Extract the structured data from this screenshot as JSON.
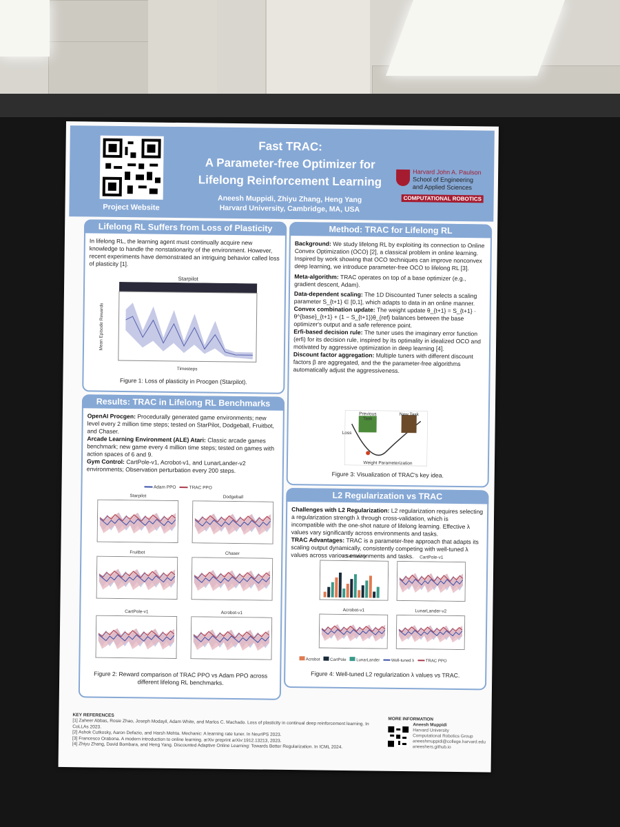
{
  "header": {
    "title_lines": [
      "Fast TRAC:",
      "A Parameter-free Optimizer for",
      "Lifelong Reinforcement Learning"
    ],
    "authors": "Aneesh Muppidi, Zhiyu Zhang, Heng Yang",
    "affiliation": "Harvard University, Cambridge, MA, USA",
    "qr_label": "Project Website",
    "school_lines": [
      "Harvard John A. Paulson",
      "School of Engineering",
      "and Applied Sciences"
    ],
    "lab_logo": "COMPUTATIONAL ROBOTICS"
  },
  "panels": {
    "plasticity": {
      "title": "Lifelong RL Suffers from Loss of Plasticity",
      "body": "In lifelong RL, the learning agent must continually acquire new knowledge to handle the nonstationarity of the environment. However, recent experiments have demonstrated an intriguing behavior called loss of plasticity [1].",
      "plot_title": "Starpilot",
      "xlabel": "Timesteps",
      "ylabel": "Mean Episode Rewards",
      "caption": "Figure 1: Loss of plasticity in Procgen (Starpilot)."
    },
    "results": {
      "title": "Results: TRAC in Lifelong RL Benchmarks",
      "paras": [
        {
          "head": "OpenAI Procgen:",
          "text": " Procedurally generated game environments; new level every 2 million time steps; tested on StarPilot, Dodgeball, Fruitbot, and Chaser."
        },
        {
          "head": "Arcade Learning Environment (ALE) Atari:",
          "text": " Classic arcade games benchmark; new game every 4 million time steps; tested on games with action spaces of 6 and 9."
        },
        {
          "head": "Gym Control:",
          "text": " CartPole-v1, Acrobot-v1, and LunarLander-v2 environments; Observation perturbation every 200 steps."
        }
      ],
      "legend": [
        "Adam PPO",
        "TRAC PPO"
      ],
      "plots": [
        "Starpilot",
        "Dodgeball",
        "Fruitbot",
        "Chaser",
        "CartPole-v1",
        "Acrobot-v1"
      ],
      "caption": "Figure 2: Reward comparison of TRAC PPO vs Adam PPO across different lifelong RL benchmarks."
    },
    "method": {
      "title": "Method: TRAC for Lifelong RL",
      "paras": [
        {
          "head": "Background:",
          "text": " We study lifelong RL by exploiting its connection to Online Convex Optimization (OCO) [2], a classical problem in online learning. Inspired by work showing that OCO techniques can improve nonconvex deep learning, we introduce parameter-free OCO to lifelong RL [3]."
        },
        {
          "head": "Meta-algorithm:",
          "text": " TRAC operates on top of a base optimizer (e.g., gradient descent, Adam)."
        },
        {
          "head": "Data-dependent scaling:",
          "text": " The 1D Discounted Tuner selects a scaling parameter S_{t+1} ∈ [0,1], which adapts to data in an online manner."
        },
        {
          "head": "Convex combination update:",
          "text": " The weight update θ_{t+1} = S_{t+1} · θ^{base}_{t+1} + (1 − S_{t+1})θ_{ref} balances between the base optimizer's output and a safe reference point."
        },
        {
          "head": "Erfi-based decision rule:",
          "text": " The tuner uses the imaginary error function (erfi) for its decision rule, inspired by its optimality in idealized OCO and motivated by aggressive optimization in deep learning [4]."
        },
        {
          "head": "Discount factor aggregation:",
          "text": " Multiple tuners with different discount factors β are aggregated, and the the parameter-free algorithms automatically adjust the aggressiveness."
        }
      ],
      "fig_labels": [
        "Previous Task",
        "New Task",
        "Loss",
        "Weight Parameterization"
      ],
      "caption": "Figure 3: Visualization of TRAC's key idea."
    },
    "l2": {
      "title": "L2 Regularization vs TRAC",
      "paras": [
        {
          "head": "Challenges with L2 Regularization:",
          "text": " L2 regularization requires selecting a regularization strength λ through cross-validation, which is incompatible with the one-shot nature of lifelong learning. Effective λ values vary significantly across environments and tasks."
        },
        {
          "head": "TRAC Advantages:",
          "text": " TRAC is a parameter-free approach that adapts its scaling output dynamically, consistently competing with well-tuned λ values across various environments and tasks."
        }
      ],
      "plots": [
        "λ Sensitivity",
        "CartPole-v1",
        "Acrobot-v1",
        "LunarLander-v2"
      ],
      "legend": [
        "Acrobot",
        "CartPole",
        "LunarLander",
        "Well-tuned λ",
        "TRAC PPO"
      ],
      "caption": "Figure 4: Well-tuned L2 regularization λ values vs TRAC."
    }
  },
  "references": {
    "title": "KEY REFERENCES",
    "items": [
      "[1] Zaheer Abbas, Rosie Zhao, Joseph Modayil, Adam White, and Marlos C. Machado. Loss of plasticity in continual deep reinforcement learning. In CoLLAs 2023.",
      "[2] Ashok Cutkosky, Aaron Defazio, and Harsh Mehta. Mechanic: A learning rate tuner. In NeurIPS 2023.",
      "[3] Francesco Orabona. A modern introduction to online learning. arXiv preprint arXiv:1912.13213, 2023.",
      "[4] Zhiyu Zhang, David Bombara, and Heng Yang. Discounted Adaptive Online Learning: Towards Better Regularization. In ICML 2024."
    ]
  },
  "more_info": {
    "title": "MORE INFORMATION",
    "lines": [
      "Aneesh Muppidi",
      "Harvard University",
      "Computational Robotics Group",
      "aneeshmuppidi@college.harvard.edu",
      "aneeshers.github.io"
    ]
  }
}
